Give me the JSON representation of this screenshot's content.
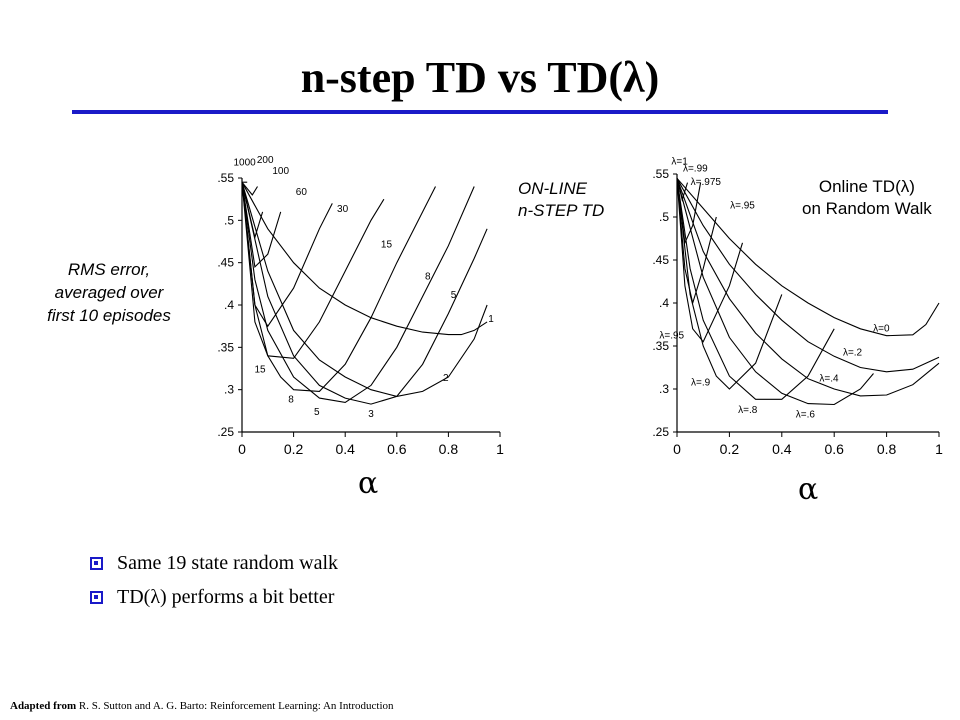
{
  "slide": {
    "title": "n-step TD vs TD(λ)",
    "bullets": [
      "Same 19 state random walk",
      "TD(λ) performs a bit better"
    ],
    "footer_bold": "Adapted from",
    "footer_rest": " R. S. Sutton and A. G. Barto: Reinforcement Learning: An Introduction",
    "accent_color": "#1a1ac8"
  },
  "shared_ylabel": [
    "RMS error,",
    "averaged over",
    "first 10 episodes"
  ],
  "chart_data": [
    {
      "type": "line",
      "title": [
        "ON-LINE",
        "n-STEP TD"
      ],
      "xlabel": "α",
      "ylabel": "RMS error, averaged over first 10 episodes",
      "xlim": [
        0,
        1
      ],
      "ylim": [
        0.25,
        0.55
      ],
      "xticks": [
        "0",
        "0.2",
        "0.4",
        "0.6",
        "0.8",
        "1"
      ],
      "yticks": [
        ".25",
        ".3",
        ".35",
        ".4",
        ".45",
        ".5",
        ".55"
      ],
      "grid": false,
      "series": [
        {
          "name": "1",
          "points": [
            [
              0,
              0.545
            ],
            [
              0.1,
              0.49
            ],
            [
              0.2,
              0.45
            ],
            [
              0.3,
              0.42
            ],
            [
              0.4,
              0.4
            ],
            [
              0.5,
              0.385
            ],
            [
              0.6,
              0.375
            ],
            [
              0.7,
              0.368
            ],
            [
              0.8,
              0.365
            ],
            [
              0.85,
              0.365
            ],
            [
              0.9,
              0.37
            ],
            [
              0.95,
              0.38
            ]
          ]
        },
        {
          "name": "2",
          "points": [
            [
              0,
              0.545
            ],
            [
              0.1,
              0.44
            ],
            [
              0.2,
              0.37
            ],
            [
              0.3,
              0.335
            ],
            [
              0.4,
              0.315
            ],
            [
              0.5,
              0.3
            ],
            [
              0.6,
              0.292
            ],
            [
              0.7,
              0.298
            ],
            [
              0.8,
              0.315
            ],
            [
              0.9,
              0.36
            ],
            [
              0.95,
              0.4
            ]
          ]
        },
        {
          "name": "3",
          "points": [
            [
              0,
              0.545
            ],
            [
              0.1,
              0.41
            ],
            [
              0.2,
              0.34
            ],
            [
              0.3,
              0.305
            ],
            [
              0.4,
              0.29
            ],
            [
              0.5,
              0.283
            ],
            [
              0.6,
              0.292
            ],
            [
              0.7,
              0.33
            ],
            [
              0.8,
              0.39
            ],
            [
              0.9,
              0.455
            ],
            [
              0.95,
              0.49
            ]
          ]
        },
        {
          "name": "5",
          "points": [
            [
              0,
              0.545
            ],
            [
              0.05,
              0.43
            ],
            [
              0.1,
              0.37
            ],
            [
              0.2,
              0.315
            ],
            [
              0.3,
              0.29
            ],
            [
              0.4,
              0.285
            ],
            [
              0.5,
              0.305
            ],
            [
              0.6,
              0.35
            ],
            [
              0.7,
              0.41
            ],
            [
              0.8,
              0.47
            ],
            [
              0.9,
              0.54
            ]
          ]
        },
        {
          "name": "8",
          "points": [
            [
              0,
              0.545
            ],
            [
              0.05,
              0.4
            ],
            [
              0.1,
              0.34
            ],
            [
              0.15,
              0.315
            ],
            [
              0.2,
              0.3
            ],
            [
              0.3,
              0.298
            ],
            [
              0.4,
              0.33
            ],
            [
              0.5,
              0.385
            ],
            [
              0.6,
              0.45
            ],
            [
              0.7,
              0.51
            ],
            [
              0.75,
              0.54
            ]
          ]
        },
        {
          "name": "15",
          "points": [
            [
              0,
              0.545
            ],
            [
              0.05,
              0.38
            ],
            [
              0.1,
              0.34
            ],
            [
              0.2,
              0.337
            ],
            [
              0.3,
              0.38
            ],
            [
              0.4,
              0.44
            ],
            [
              0.5,
              0.5
            ],
            [
              0.55,
              0.525
            ]
          ]
        },
        {
          "name": "30",
          "points": [
            [
              0,
              0.545
            ],
            [
              0.05,
              0.4
            ],
            [
              0.1,
              0.375
            ],
            [
              0.2,
              0.42
            ],
            [
              0.3,
              0.49
            ],
            [
              0.35,
              0.52
            ]
          ]
        },
        {
          "name": "60",
          "points": [
            [
              0,
              0.545
            ],
            [
              0.05,
              0.445
            ],
            [
              0.1,
              0.46
            ],
            [
              0.15,
              0.51
            ]
          ]
        },
        {
          "name": "100",
          "points": [
            [
              0,
              0.545
            ],
            [
              0.05,
              0.48
            ],
            [
              0.08,
              0.51
            ]
          ]
        },
        {
          "name": "200",
          "points": [
            [
              0,
              0.545
            ],
            [
              0.04,
              0.53
            ],
            [
              0.06,
              0.54
            ]
          ]
        },
        {
          "name": "1000",
          "points": [
            [
              0,
              0.545
            ],
            [
              0.02,
              0.545
            ]
          ]
        }
      ],
      "point_labels": [
        {
          "text": "1000",
          "x": 0.01,
          "y": 0.565
        },
        {
          "text": "200",
          "x": 0.09,
          "y": 0.568
        },
        {
          "text": "100",
          "x": 0.15,
          "y": 0.555
        },
        {
          "text": "60",
          "x": 0.23,
          "y": 0.53
        },
        {
          "text": "30",
          "x": 0.39,
          "y": 0.51
        },
        {
          "text": "15",
          "x": 0.56,
          "y": 0.468
        },
        {
          "text": "8",
          "x": 0.72,
          "y": 0.43
        },
        {
          "text": "5",
          "x": 0.82,
          "y": 0.408
        },
        {
          "text": "1",
          "x": 0.965,
          "y": 0.38
        },
        {
          "text": "2",
          "x": 0.79,
          "y": 0.31
        },
        {
          "text": "3",
          "x": 0.5,
          "y": 0.268
        },
        {
          "text": "5",
          "x": 0.29,
          "y": 0.27
        },
        {
          "text": "8",
          "x": 0.19,
          "y": 0.285
        },
        {
          "text": "15",
          "x": 0.07,
          "y": 0.32
        }
      ]
    },
    {
      "type": "line",
      "title": [
        "Online TD(λ)",
        "on Random Walk"
      ],
      "xlabel": "α",
      "ylabel": "",
      "xlim": [
        0,
        1
      ],
      "ylim": [
        0.25,
        0.55
      ],
      "xticks": [
        "0",
        "0.2",
        "0.4",
        "0.6",
        "0.8",
        "1"
      ],
      "yticks": [
        ".25",
        ".3",
        ".35",
        ".4",
        ".45",
        ".5",
        ".55"
      ],
      "grid": false,
      "series": [
        {
          "name": "λ=0",
          "points": [
            [
              0,
              0.545
            ],
            [
              0.1,
              0.51
            ],
            [
              0.2,
              0.475
            ],
            [
              0.3,
              0.445
            ],
            [
              0.4,
              0.42
            ],
            [
              0.5,
              0.4
            ],
            [
              0.6,
              0.383
            ],
            [
              0.7,
              0.37
            ],
            [
              0.8,
              0.362
            ],
            [
              0.9,
              0.363
            ],
            [
              0.95,
              0.375
            ],
            [
              1.0,
              0.4
            ]
          ]
        },
        {
          "name": "λ=.2",
          "points": [
            [
              0,
              0.545
            ],
            [
              0.1,
              0.49
            ],
            [
              0.2,
              0.445
            ],
            [
              0.3,
              0.41
            ],
            [
              0.4,
              0.38
            ],
            [
              0.5,
              0.355
            ],
            [
              0.6,
              0.338
            ],
            [
              0.7,
              0.325
            ],
            [
              0.8,
              0.32
            ],
            [
              0.9,
              0.323
            ],
            [
              1.0,
              0.337
            ]
          ]
        },
        {
          "name": "λ=.4",
          "points": [
            [
              0,
              0.545
            ],
            [
              0.1,
              0.46
            ],
            [
              0.2,
              0.405
            ],
            [
              0.3,
              0.365
            ],
            [
              0.4,
              0.335
            ],
            [
              0.5,
              0.312
            ],
            [
              0.6,
              0.3
            ],
            [
              0.7,
              0.292
            ],
            [
              0.8,
              0.293
            ],
            [
              0.9,
              0.305
            ],
            [
              1.0,
              0.33
            ]
          ]
        },
        {
          "name": "λ=.6",
          "points": [
            [
              0,
              0.545
            ],
            [
              0.1,
              0.43
            ],
            [
              0.2,
              0.36
            ],
            [
              0.3,
              0.32
            ],
            [
              0.4,
              0.295
            ],
            [
              0.5,
              0.283
            ],
            [
              0.6,
              0.282
            ],
            [
              0.7,
              0.3
            ],
            [
              0.75,
              0.318
            ]
          ]
        },
        {
          "name": "λ=.8",
          "points": [
            [
              0,
              0.545
            ],
            [
              0.05,
              0.44
            ],
            [
              0.1,
              0.38
            ],
            [
              0.2,
              0.315
            ],
            [
              0.3,
              0.288
            ],
            [
              0.4,
              0.288
            ],
            [
              0.5,
              0.315
            ],
            [
              0.6,
              0.37
            ]
          ]
        },
        {
          "name": "λ=.9",
          "points": [
            [
              0,
              0.545
            ],
            [
              0.05,
              0.41
            ],
            [
              0.1,
              0.35
            ],
            [
              0.15,
              0.315
            ],
            [
              0.2,
              0.3
            ],
            [
              0.3,
              0.33
            ],
            [
              0.4,
              0.41
            ]
          ]
        },
        {
          "name": "λ=.95",
          "points": [
            [
              0,
              0.545
            ],
            [
              0.03,
              0.42
            ],
            [
              0.06,
              0.37
            ],
            [
              0.1,
              0.355
            ],
            [
              0.2,
              0.42
            ],
            [
              0.25,
              0.47
            ]
          ]
        },
        {
          "name": "λ=.975",
          "points": [
            [
              0,
              0.545
            ],
            [
              0.03,
              0.44
            ],
            [
              0.06,
              0.4
            ],
            [
              0.1,
              0.44
            ],
            [
              0.15,
              0.5
            ]
          ]
        },
        {
          "name": "λ=.99",
          "points": [
            [
              0,
              0.545
            ],
            [
              0.03,
              0.47
            ],
            [
              0.06,
              0.49
            ],
            [
              0.09,
              0.54
            ]
          ]
        },
        {
          "name": "λ=1",
          "points": [
            [
              0,
              0.545
            ],
            [
              0.02,
              0.52
            ],
            [
              0.04,
              0.54
            ]
          ]
        }
      ],
      "point_labels": [
        {
          "text": "λ=1",
          "x": 0.01,
          "y": 0.561
        },
        {
          "text": "λ=.99",
          "x": 0.07,
          "y": 0.553
        },
        {
          "text": "λ=.975",
          "x": 0.11,
          "y": 0.537
        },
        {
          "text": "λ=.95",
          "x": 0.25,
          "y": 0.51
        },
        {
          "text": "λ=0",
          "x": 0.78,
          "y": 0.367
        },
        {
          "text": "λ=.2",
          "x": 0.67,
          "y": 0.339
        },
        {
          "text": "λ=.4",
          "x": 0.58,
          "y": 0.309
        },
        {
          "text": "λ=.6",
          "x": 0.49,
          "y": 0.267
        },
        {
          "text": "λ=.8",
          "x": 0.27,
          "y": 0.272
        },
        {
          "text": "λ=.9",
          "x": 0.09,
          "y": 0.304
        },
        {
          "text": "λ=.95",
          "x": -0.02,
          "y": 0.359
        }
      ]
    }
  ]
}
